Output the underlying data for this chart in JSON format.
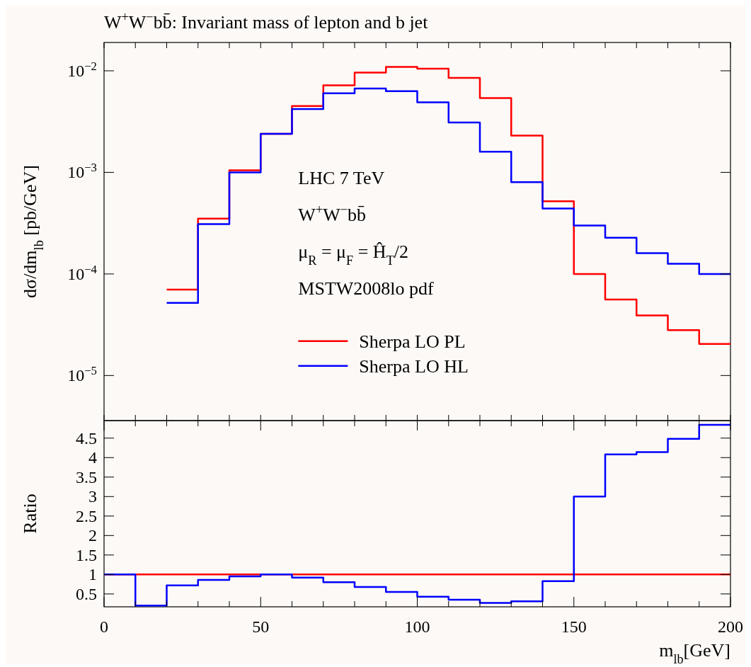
{
  "chart_data": [
    {
      "type": "histogram",
      "title": "W$^{+}$W$^{−}$bb̄: Invariant mass of lepton and b jet",
      "ylabel": "dσ/dm$_{lb}$ [pb/GeV]",
      "log": "y",
      "legend": "bottom",
      "tick_labels": "y",
      "grid": false,
      "bins": [
        20,
        30,
        40,
        50,
        60,
        70,
        80,
        90,
        100,
        110,
        120,
        130,
        140,
        150,
        160,
        170,
        180,
        190,
        200
      ],
      "xlim": [
        0,
        200
      ],
      "ylim": [
        3.6e-06,
        0.019
      ],
      "xticks": [
        {
          "value": 0,
          "label": null
        },
        {
          "value": 10,
          "label": null
        },
        {
          "value": 20,
          "label": null
        },
        {
          "value": 30,
          "label": null
        },
        {
          "value": 40,
          "label": null
        },
        {
          "value": 50,
          "label": null
        },
        {
          "value": 60,
          "label": null
        },
        {
          "value": 70,
          "label": null
        },
        {
          "value": 80,
          "label": null
        },
        {
          "value": 90,
          "label": null
        },
        {
          "value": 100,
          "label": null
        },
        {
          "value": 110,
          "label": null
        },
        {
          "value": 120,
          "label": null
        },
        {
          "value": 130,
          "label": null
        },
        {
          "value": 140,
          "label": null
        },
        {
          "value": 150,
          "label": null
        },
        {
          "value": 160,
          "label": null
        },
        {
          "value": 170,
          "label": null
        },
        {
          "value": 180,
          "label": null
        },
        {
          "value": 190,
          "label": null
        },
        {
          "value": 200,
          "label": null
        }
      ],
      "yticks": [
        {
          "value": 1e-05,
          "label": "10$^{−5}$"
        },
        {
          "value": 0.0001,
          "label": "10$^{−4}$"
        },
        {
          "value": 0.001,
          "label": "10$^{−3}$"
        },
        {
          "value": 0.01,
          "label": "10$^{−2}$"
        }
      ],
      "annotations": [
        "LHC 7 TeV",
        "W$^{+}$W$^{−}$bb̄",
        "μ$_{R}$ = μ$_{F}$ = Ĥ$_{T}$/2",
        "MSTW2008lo pdf"
      ],
      "series": [
        {
          "name": "Sherpa LO PL",
          "color": "#ff0000",
          "values": [
            7e-05,
            0.00035,
            0.00105,
            0.0024,
            0.0045,
            0.0072,
            0.0096,
            0.0109,
            0.0105,
            0.0085,
            0.0054,
            0.0023,
            0.00052,
            0.0001,
            5.6e-05,
            3.9e-05,
            2.8e-05,
            2.05e-05
          ]
        },
        {
          "name": "Sherpa LO HL",
          "color": "#0000ff",
          "values": [
            5.2e-05,
            0.00031,
            0.001,
            0.0024,
            0.0042,
            0.006,
            0.0067,
            0.0063,
            0.0049,
            0.0031,
            0.0016,
            0.0008,
            0.00044,
            0.0003,
            0.000227,
            0.00016,
            0.000126,
            0.0001
          ]
        }
      ]
    },
    {
      "type": "histogram",
      "xlabel": "m$_{lb}$[GeV]",
      "ylabel": "Ratio",
      "grid": false,
      "bins": [
        0,
        10,
        20,
        30,
        40,
        50,
        60,
        70,
        80,
        90,
        100,
        110,
        120,
        130,
        140,
        150,
        160,
        170,
        180,
        190,
        200
      ],
      "xlim": [
        0,
        200
      ],
      "ylim": [
        0.17,
        4.95
      ],
      "xticks": [
        0,
        {
          "value": 10,
          "label": null
        },
        {
          "value": 20,
          "label": null
        },
        {
          "value": 30,
          "label": null
        },
        {
          "value": 40,
          "label": null
        },
        50,
        {
          "value": 60,
          "label": null
        },
        {
          "value": 70,
          "label": null
        },
        {
          "value": 80,
          "label": null
        },
        {
          "value": 90,
          "label": null
        },
        100,
        {
          "value": 110,
          "label": null
        },
        {
          "value": 120,
          "label": null
        },
        {
          "value": 130,
          "label": null
        },
        {
          "value": 140,
          "label": null
        },
        150,
        {
          "value": 160,
          "label": null
        },
        {
          "value": 170,
          "label": null
        },
        {
          "value": 180,
          "label": null
        },
        {
          "value": 190,
          "label": null
        },
        200
      ],
      "yticks": [
        0.5,
        1,
        1.5,
        2,
        2.5,
        3,
        3.5,
        4,
        4.5
      ],
      "series": [
        {
          "color": "#ff0000",
          "values": [
            1,
            1,
            1,
            1,
            1,
            1,
            1,
            1,
            1,
            1,
            1,
            1,
            1,
            1,
            1,
            1,
            1,
            1,
            1,
            1
          ]
        },
        {
          "color": "#0000ff",
          "values": [
            1,
            0.2,
            0.72,
            0.86,
            0.95,
            1.0,
            0.92,
            0.8,
            0.68,
            0.55,
            0.43,
            0.35,
            0.27,
            0.31,
            0.83,
            3.0,
            4.08,
            4.14,
            4.48,
            4.84
          ]
        }
      ]
    }
  ]
}
